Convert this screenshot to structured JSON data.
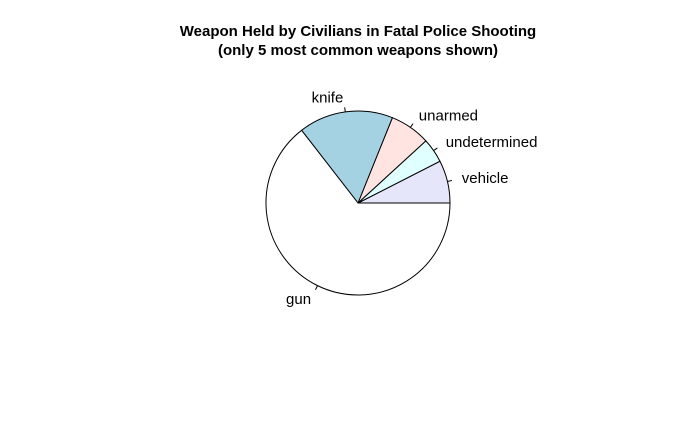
{
  "chart_data": {
    "type": "pie",
    "title": "Weapon Held by Civilians in Fatal Police Shooting",
    "subtitle": "(only 5 most common weapons shown)",
    "xlabel": "",
    "ylabel": "",
    "legend": "none",
    "direction": "counterclockwise",
    "start": "3 o'clock",
    "categories": [
      "vehicle",
      "undetermined",
      "unarmed",
      "knife",
      "gun"
    ],
    "values": [
      0.075,
      0.043,
      0.071,
      0.166,
      0.645
    ],
    "colors": [
      "#E6E6FA",
      "#E0FFFF",
      "#FFE4E1",
      "#A5D2E2",
      "#FFFFFF"
    ]
  }
}
